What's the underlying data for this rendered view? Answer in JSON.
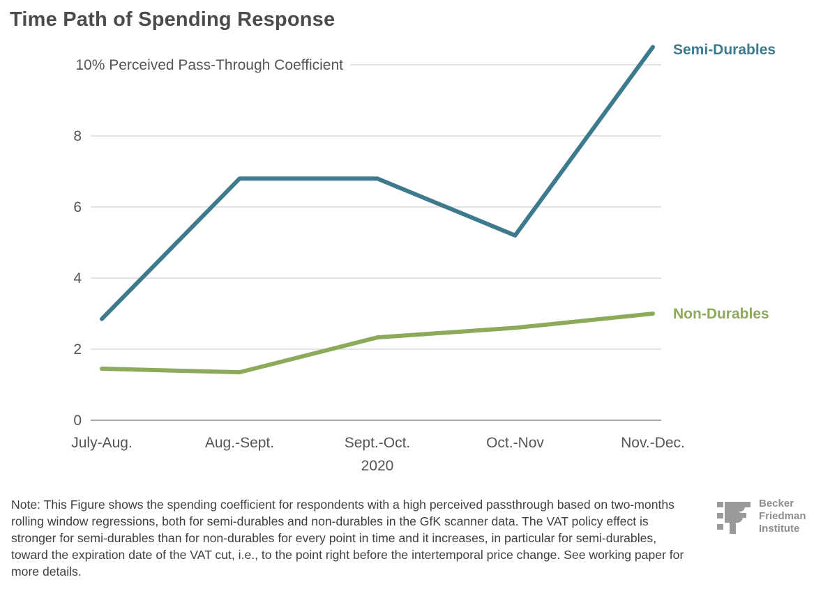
{
  "title": "Time Path of Spending Response",
  "chart_data": {
    "type": "line",
    "title": "Time Path of Spending Response",
    "ylabel": "Perceived Pass-Through Coefficient",
    "xlabel": "2020",
    "categories": [
      "July-Aug.",
      "Aug.-Sept.",
      "Sept.-Oct.",
      "Oct.-Nov",
      "Nov.-Dec."
    ],
    "ylim": [
      0,
      10.5
    ],
    "y_ticks": [
      {
        "value": 0,
        "label": "0"
      },
      {
        "value": 2,
        "label": "2"
      },
      {
        "value": 4,
        "label": "4"
      },
      {
        "value": 6,
        "label": "6"
      },
      {
        "value": 8,
        "label": "8"
      },
      {
        "value": 10,
        "label": "10% Perceived Pass-Through Coefficient"
      }
    ],
    "grid": true,
    "series": [
      {
        "name": "Semi-Durables",
        "color": "#3d7a8e",
        "values": [
          2.85,
          6.8,
          6.8,
          5.2,
          10.5
        ]
      },
      {
        "name": "Non-Durables",
        "color": "#8daa5b",
        "values": [
          1.45,
          1.35,
          2.33,
          2.6,
          3.0
        ]
      }
    ]
  },
  "note": "Note: This Figure shows the spending coefficient for respondents with a high perceived passthrough based on two-months rolling window regressions, both for semi-durables and non-durables in the GfK scanner data. The VAT policy effect is stronger for semi-durables than for non-durables for every point in time and it increases, in particular for semi-durables, toward the expiration date of the VAT cut, i.e., to the point right before the intertemporal price change. See working paper for more details.",
  "logo": {
    "mark": "BF",
    "line1": "Becker",
    "line2": "Friedman",
    "line3": "Institute",
    "color": "#8f8f8f"
  }
}
